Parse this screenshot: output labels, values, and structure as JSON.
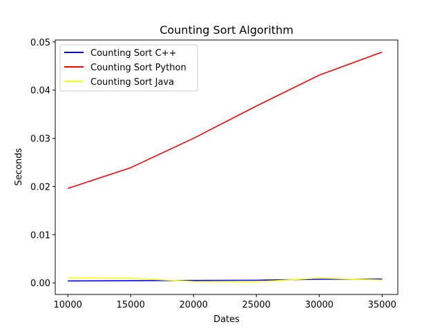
{
  "chart_data": {
    "type": "line",
    "title": "Counting Sort Algorithm",
    "xlabel": "Dates",
    "ylabel": "Seconds",
    "x": [
      10000,
      15000,
      20000,
      25000,
      30000,
      35000
    ],
    "xlim": [
      9000,
      36250
    ],
    "ylim": [
      -0.0024,
      0.0504
    ],
    "xticks": [
      10000,
      15000,
      20000,
      25000,
      30000,
      35000
    ],
    "xtick_labels": [
      "10000",
      "15000",
      "20000",
      "25000",
      "30000",
      "35000"
    ],
    "yticks": [
      0.0,
      0.01,
      0.02,
      0.03,
      0.04,
      0.05
    ],
    "ytick_labels": [
      "0.00",
      "0.01",
      "0.02",
      "0.03",
      "0.04",
      "0.05"
    ],
    "grid": false,
    "legend_position": "top-left",
    "series": [
      {
        "name": "Counting Sort C++",
        "color": "#0000ff",
        "values": [
          0.0004,
          0.00045,
          0.0005,
          0.00055,
          0.00075,
          0.0008
        ]
      },
      {
        "name": "Counting Sort Python",
        "color": "#ff0000",
        "values": [
          0.0196,
          0.0239,
          0.03,
          0.0367,
          0.0431,
          0.0479
        ]
      },
      {
        "name": "Counting Sort Java",
        "color": "#ffff00",
        "values": [
          0.001,
          0.00095,
          0.0003,
          0.0002,
          0.001,
          0.0006
        ]
      }
    ]
  }
}
